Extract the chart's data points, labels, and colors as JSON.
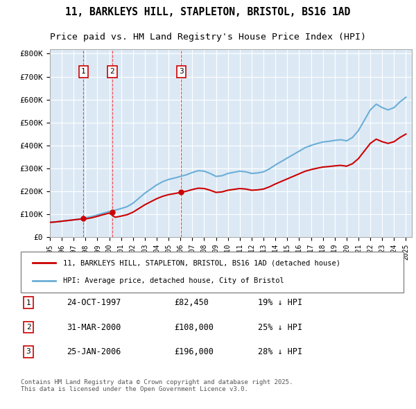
{
  "title_line1": "11, BARKLEYS HILL, STAPLETON, BRISTOL, BS16 1AD",
  "title_line2": "Price paid vs. HM Land Registry's House Price Index (HPI)",
  "background_color": "#dce9f5",
  "plot_bg_color": "#dce9f5",
  "ylabel": "",
  "ylim": [
    0,
    820000
  ],
  "yticks": [
    0,
    100000,
    200000,
    300000,
    400000,
    500000,
    600000,
    700000,
    800000
  ],
  "ytick_labels": [
    "£0",
    "£100K",
    "£200K",
    "£300K",
    "£400K",
    "£500K",
    "£600K",
    "£700K",
    "£800K"
  ],
  "legend_label_red": "11, BARKLEYS HILL, STAPLETON, BRISTOL, BS16 1AD (detached house)",
  "legend_label_blue": "HPI: Average price, detached house, City of Bristol",
  "footnote": "Contains HM Land Registry data © Crown copyright and database right 2025.\nThis data is licensed under the Open Government Licence v3.0.",
  "sale_points": [
    {
      "label": "1",
      "date_num": 1997.82,
      "price": 82450
    },
    {
      "label": "2",
      "date_num": 2000.25,
      "price": 108000
    },
    {
      "label": "3",
      "date_num": 2006.07,
      "price": 196000
    }
  ],
  "sale_labels_info": [
    {
      "label": "1",
      "date": "24-OCT-1997",
      "price": "£82,450",
      "hpi": "19% ↓ HPI"
    },
    {
      "label": "2",
      "date": "31-MAR-2000",
      "price": "£108,000",
      "hpi": "25% ↓ HPI"
    },
    {
      "label": "3",
      "date": "25-JAN-2006",
      "price": "£196,000",
      "hpi": "28% ↓ HPI"
    }
  ],
  "hpi_data": {
    "years": [
      1995.0,
      1995.5,
      1996.0,
      1996.5,
      1997.0,
      1997.5,
      1998.0,
      1998.5,
      1999.0,
      1999.5,
      2000.0,
      2000.5,
      2001.0,
      2001.5,
      2002.0,
      2002.5,
      2003.0,
      2003.5,
      2004.0,
      2004.5,
      2005.0,
      2005.5,
      2006.0,
      2006.5,
      2007.0,
      2007.5,
      2008.0,
      2008.5,
      2009.0,
      2009.5,
      2010.0,
      2010.5,
      2011.0,
      2011.5,
      2012.0,
      2012.5,
      2013.0,
      2013.5,
      2014.0,
      2014.5,
      2015.0,
      2015.5,
      2016.0,
      2016.5,
      2017.0,
      2017.5,
      2018.0,
      2018.5,
      2019.0,
      2019.5,
      2020.0,
      2020.5,
      2021.0,
      2021.5,
      2022.0,
      2022.5,
      2023.0,
      2023.5,
      2024.0,
      2024.5,
      2025.0
    ],
    "values": [
      65000,
      67000,
      70000,
      73000,
      76000,
      79000,
      85000,
      90000,
      97000,
      105000,
      112000,
      118000,
      125000,
      133000,
      148000,
      170000,
      192000,
      210000,
      228000,
      242000,
      252000,
      258000,
      265000,
      272000,
      282000,
      290000,
      288000,
      278000,
      265000,
      268000,
      278000,
      283000,
      288000,
      285000,
      278000,
      280000,
      285000,
      298000,
      315000,
      330000,
      345000,
      360000,
      375000,
      390000,
      400000,
      408000,
      415000,
      418000,
      422000,
      425000,
      420000,
      435000,
      465000,
      510000,
      555000,
      580000,
      565000,
      555000,
      565000,
      590000,
      610000
    ]
  },
  "price_data": {
    "years": [
      1997.82,
      2000.25,
      2006.07
    ],
    "values": [
      82450,
      108000,
      196000
    ],
    "hpi_at_sale": [
      101800,
      144000,
      272000
    ]
  },
  "red_line_data": {
    "years": [
      1997.82,
      2000.25,
      2006.07,
      2024.5
    ],
    "values": [
      82450,
      108000,
      196000,
      470000
    ]
  }
}
